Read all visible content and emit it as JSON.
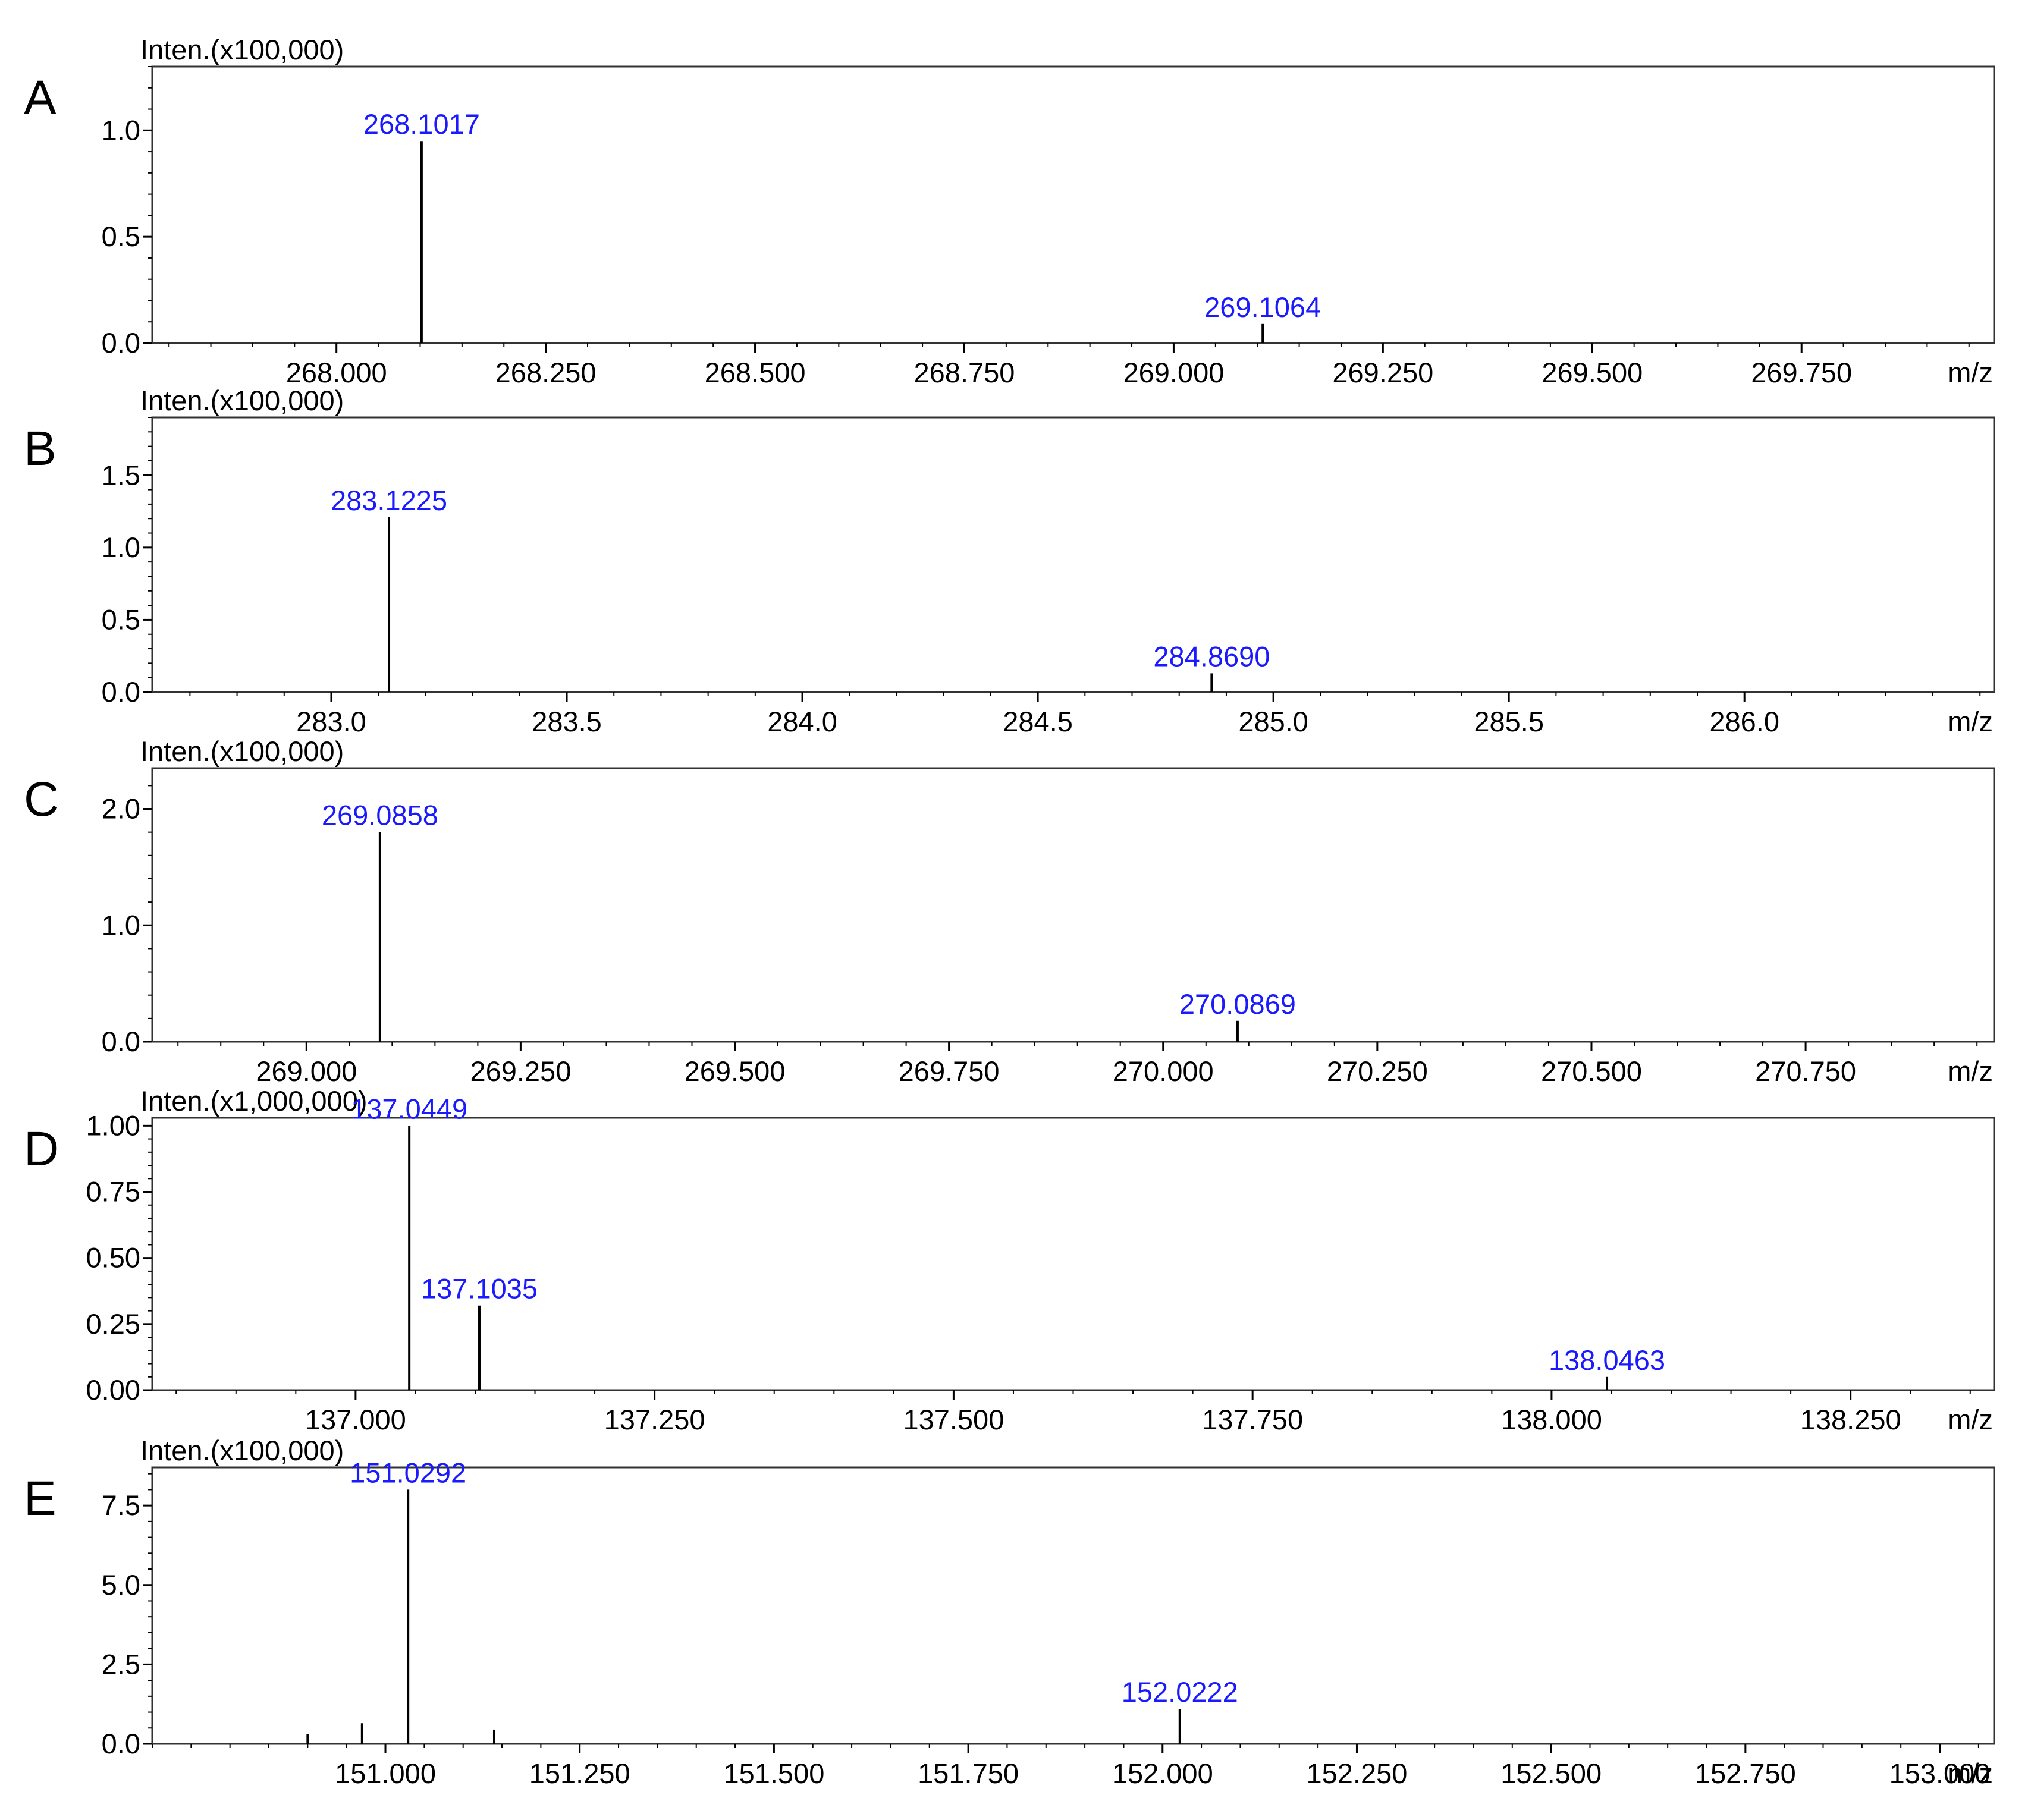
{
  "chart_data": [
    {
      "panel_label": "A",
      "type": "bar",
      "intensity_label": "Inten.(x100,000)",
      "x_unit_label": "m/z",
      "xlim": [
        267.78,
        269.98
      ],
      "ylim": [
        0,
        1.3
      ],
      "x_ticks": [
        268.0,
        268.25,
        268.5,
        268.75,
        269.0,
        269.25,
        269.5,
        269.75
      ],
      "x_tick_labels": [
        "268.000",
        "268.250",
        "268.500",
        "268.750",
        "269.000",
        "269.250",
        "269.500",
        "269.750"
      ],
      "y_ticks": [
        0,
        0.5,
        1.0
      ],
      "y_tick_labels": [
        "0.0",
        "0.5",
        "1.0"
      ],
      "peaks": [
        {
          "mz": 268.1017,
          "intensity": 0.95,
          "label": "268.1017"
        },
        {
          "mz": 269.1064,
          "intensity": 0.09,
          "label": "269.1064"
        }
      ]
    },
    {
      "panel_label": "B",
      "type": "bar",
      "intensity_label": "Inten.(x100,000)",
      "x_unit_label": "m/z",
      "xlim": [
        282.62,
        286.53
      ],
      "ylim": [
        0,
        1.9
      ],
      "x_ticks": [
        283.0,
        283.5,
        284.0,
        284.5,
        285.0,
        285.5,
        286.0
      ],
      "x_tick_labels": [
        "283.0",
        "283.5",
        "284.0",
        "284.5",
        "285.0",
        "285.5",
        "286.0"
      ],
      "y_ticks": [
        0,
        0.5,
        1.0,
        1.5
      ],
      "y_tick_labels": [
        "0.0",
        "0.5",
        "1.0",
        "1.5"
      ],
      "peaks": [
        {
          "mz": 283.1225,
          "intensity": 1.21,
          "label": "283.1225"
        },
        {
          "mz": 284.869,
          "intensity": 0.13,
          "label": "284.8690"
        }
      ]
    },
    {
      "panel_label": "C",
      "type": "bar",
      "intensity_label": "Inten.(x100,000)",
      "x_unit_label": "m/z",
      "xlim": [
        268.82,
        270.97
      ],
      "ylim": [
        0,
        2.35
      ],
      "x_ticks": [
        269.0,
        269.25,
        269.5,
        269.75,
        270.0,
        270.25,
        270.5,
        270.75
      ],
      "x_tick_labels": [
        "269.000",
        "269.250",
        "269.500",
        "269.750",
        "270.000",
        "270.250",
        "270.500",
        "270.750"
      ],
      "y_ticks": [
        0,
        1.0,
        2.0
      ],
      "y_tick_labels": [
        "0.0",
        "1.0",
        "2.0"
      ],
      "peaks": [
        {
          "mz": 269.0858,
          "intensity": 1.8,
          "label": "269.0858"
        },
        {
          "mz": 270.0869,
          "intensity": 0.18,
          "label": "270.0869"
        }
      ]
    },
    {
      "panel_label": "D",
      "type": "bar",
      "intensity_label": "Inten.(x1,000,000)",
      "x_unit_label": "m/z",
      "xlim": [
        136.83,
        138.37
      ],
      "ylim": [
        0,
        1.03
      ],
      "x_ticks": [
        137.0,
        137.25,
        137.5,
        137.75,
        138.0,
        138.25
      ],
      "x_tick_labels": [
        "137.000",
        "137.250",
        "137.500",
        "137.750",
        "138.000",
        "138.250"
      ],
      "y_ticks": [
        0,
        0.25,
        0.5,
        0.75,
        1.0
      ],
      "y_tick_labels": [
        "0.00",
        "0.25",
        "0.50",
        "0.75",
        "1.00"
      ],
      "peaks": [
        {
          "mz": 137.0449,
          "intensity": 1.0,
          "label": "137.0449"
        },
        {
          "mz": 137.1035,
          "intensity": 0.32,
          "label": "137.1035"
        },
        {
          "mz": 138.0463,
          "intensity": 0.05,
          "label": "138.0463"
        }
      ]
    },
    {
      "panel_label": "E",
      "type": "bar",
      "intensity_label": "Inten.(x100,000)",
      "x_unit_label": "m/z",
      "xlim": [
        150.7,
        153.07
      ],
      "ylim": [
        0,
        8.7
      ],
      "x_ticks": [
        151.0,
        151.25,
        151.5,
        151.75,
        152.0,
        152.25,
        152.5,
        152.75,
        153.0
      ],
      "x_tick_labels": [
        "151.000",
        "151.250",
        "151.500",
        "151.750",
        "152.000",
        "152.250",
        "152.500",
        "152.750",
        "153.000"
      ],
      "y_ticks": [
        0,
        2.5,
        5.0,
        7.5
      ],
      "y_tick_labels": [
        "0.0",
        "2.5",
        "5.0",
        "7.5"
      ],
      "peaks": [
        {
          "mz": 150.9,
          "intensity": 0.3
        },
        {
          "mz": 150.97,
          "intensity": 0.65
        },
        {
          "mz": 151.0292,
          "intensity": 8.0,
          "label": "151.0292"
        },
        {
          "mz": 151.14,
          "intensity": 0.45
        },
        {
          "mz": 152.0222,
          "intensity": 1.1,
          "label": "152.0222"
        }
      ]
    }
  ]
}
